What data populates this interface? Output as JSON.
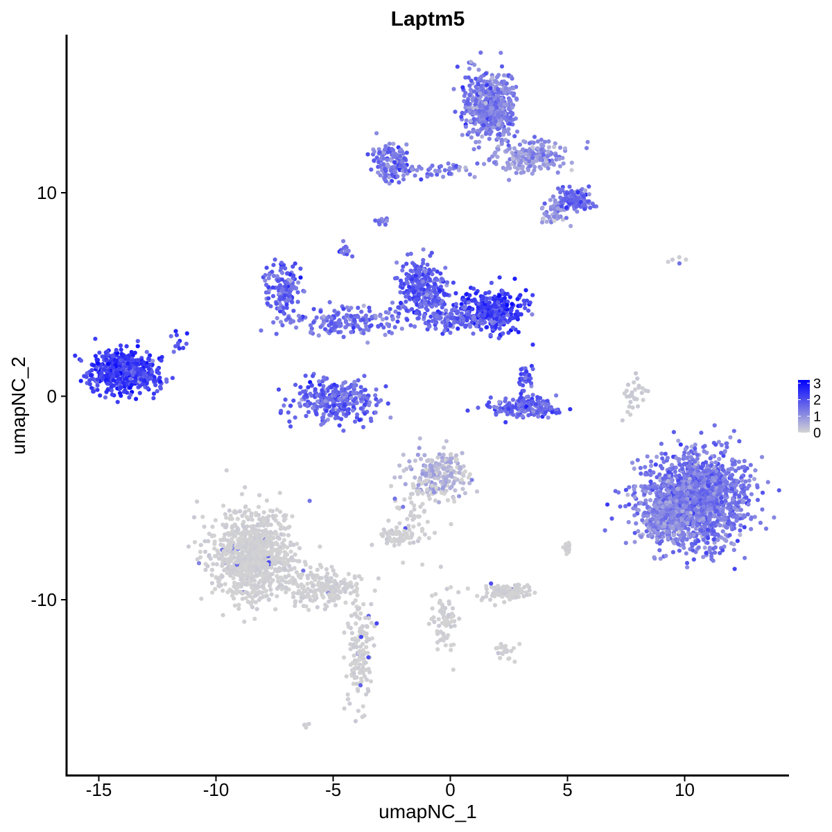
{
  "chart_data": {
    "type": "scatter",
    "title": "Laptm5",
    "xlabel": "umapNC_1",
    "ylabel": "umapNC_2",
    "xlim": [
      -16.5,
      14.5
    ],
    "ylim": [
      -18.5,
      17.7
    ],
    "x_ticks": [
      -15,
      -10,
      -5,
      0,
      5,
      10
    ],
    "x_tick_labels": [
      "-15",
      "-10",
      "-5",
      "0",
      "5",
      "10"
    ],
    "y_ticks": [
      10,
      0,
      -10
    ],
    "y_tick_labels": [
      "10",
      "0",
      "-10"
    ],
    "legend": {
      "placement": "right",
      "ticks": [
        3,
        2,
        1,
        0
      ],
      "tick_labels": [
        "3",
        "2",
        "1",
        "0"
      ],
      "range": [
        0,
        3.2
      ]
    },
    "color_low": "#d3d3d3",
    "color_high": "#0000ff",
    "clusters": [
      {
        "x": -14.2,
        "y": 1.2,
        "sx": 0.7,
        "sy": 0.6,
        "n": 400,
        "expr": 2.3
      },
      {
        "x": -12.9,
        "y": 1.0,
        "sx": 0.4,
        "sy": 0.6,
        "n": 90,
        "expr": 2.1
      },
      {
        "x": -4.8,
        "y": -0.2,
        "sx": 1.1,
        "sy": 0.6,
        "n": 300,
        "expr": 1.7
      },
      {
        "x": -7.1,
        "y": 5.3,
        "sx": 0.4,
        "sy": 0.7,
        "n": 150,
        "expr": 1.7
      },
      {
        "x": -4.5,
        "y": 3.7,
        "sx": 1.5,
        "sy": 0.4,
        "n": 180,
        "expr": 1.5
      },
      {
        "x": -1.2,
        "y": 5.4,
        "sx": 0.6,
        "sy": 0.7,
        "n": 270,
        "expr": 1.8
      },
      {
        "x": 1.8,
        "y": 4.2,
        "sx": 0.8,
        "sy": 0.6,
        "n": 320,
        "expr": 2.3
      },
      {
        "x": 0.3,
        "y": 3.8,
        "sx": 1.0,
        "sy": 0.4,
        "n": 120,
        "expr": 1.6
      },
      {
        "x": 3.2,
        "y": -0.6,
        "sx": 0.8,
        "sy": 0.25,
        "n": 170,
        "expr": 1.7
      },
      {
        "x": 3.2,
        "y": 0.9,
        "sx": 0.2,
        "sy": 0.4,
        "n": 40,
        "expr": 1.8
      },
      {
        "x": 10.5,
        "y": -5.0,
        "sx": 1.2,
        "sy": 1.2,
        "n": 1500,
        "expr": 1.4
      },
      {
        "x": 9.1,
        "y": -6.0,
        "sx": 0.6,
        "sy": 0.7,
        "n": 250,
        "expr": 1.1
      },
      {
        "x": 1.7,
        "y": 14.3,
        "sx": 0.6,
        "sy": 0.9,
        "n": 550,
        "expr": 1.3
      },
      {
        "x": -2.6,
        "y": 11.5,
        "sx": 0.5,
        "sy": 0.5,
        "n": 130,
        "expr": 1.4
      },
      {
        "x": -0.6,
        "y": 11.1,
        "sx": 1.0,
        "sy": 0.2,
        "n": 50,
        "expr": 1.3
      },
      {
        "x": 3.3,
        "y": 11.8,
        "sx": 0.9,
        "sy": 0.4,
        "n": 200,
        "expr": 1.0
      },
      {
        "x": 5.3,
        "y": 9.6,
        "sx": 0.5,
        "sy": 0.3,
        "n": 120,
        "expr": 1.7
      },
      {
        "x": 4.4,
        "y": 9.0,
        "sx": 0.3,
        "sy": 0.3,
        "n": 40,
        "expr": 1.0
      },
      {
        "x": -8.5,
        "y": -7.8,
        "sx": 1.0,
        "sy": 1.2,
        "n": 900,
        "expr": 0.05
      },
      {
        "x": -5.5,
        "y": -9.4,
        "sx": 1.0,
        "sy": 0.5,
        "n": 200,
        "expr": 0.05
      },
      {
        "x": -3.9,
        "y": -12.5,
        "sx": 0.3,
        "sy": 1.6,
        "n": 140,
        "expr": 0.05
      },
      {
        "x": -0.5,
        "y": -3.9,
        "sx": 0.7,
        "sy": 0.6,
        "n": 220,
        "expr": 0.4
      },
      {
        "x": 2.4,
        "y": -9.6,
        "sx": 0.5,
        "sy": 0.2,
        "n": 140,
        "expr": 0.05
      },
      {
        "x": -1.4,
        "y": -5.8,
        "sx": 0.6,
        "sy": 1.0,
        "n": 60,
        "expr": 0.05
      },
      {
        "x": -0.3,
        "y": -11.0,
        "sx": 0.3,
        "sy": 0.9,
        "n": 70,
        "expr": 0.05
      },
      {
        "x": -2.2,
        "y": -6.9,
        "sx": 0.5,
        "sy": 0.25,
        "n": 60,
        "expr": 0.05
      },
      {
        "x": 2.3,
        "y": -12.6,
        "sx": 0.3,
        "sy": 0.2,
        "n": 20,
        "expr": 0.05
      },
      {
        "x": 7.8,
        "y": -0.1,
        "sx": 0.25,
        "sy": 0.6,
        "n": 30,
        "expr": 0.1
      },
      {
        "x": 5.0,
        "y": -7.6,
        "sx": 0.1,
        "sy": 0.25,
        "n": 12,
        "expr": 0.05
      },
      {
        "x": 9.6,
        "y": 6.7,
        "sx": 0.3,
        "sy": 0.1,
        "n": 5,
        "expr": 0.1
      },
      {
        "x": -11.6,
        "y": 2.6,
        "sx": 0.3,
        "sy": 0.4,
        "n": 12,
        "expr": 2.0
      },
      {
        "x": -6.1,
        "y": -16.2,
        "sx": 0.1,
        "sy": 0.1,
        "n": 4,
        "expr": 0.05
      },
      {
        "x": -4.5,
        "y": 7.2,
        "sx": 0.2,
        "sy": 0.3,
        "n": 15,
        "expr": 1.5
      },
      {
        "x": -2.9,
        "y": 8.6,
        "sx": 0.2,
        "sy": 0.2,
        "n": 10,
        "expr": 1.4
      }
    ]
  }
}
